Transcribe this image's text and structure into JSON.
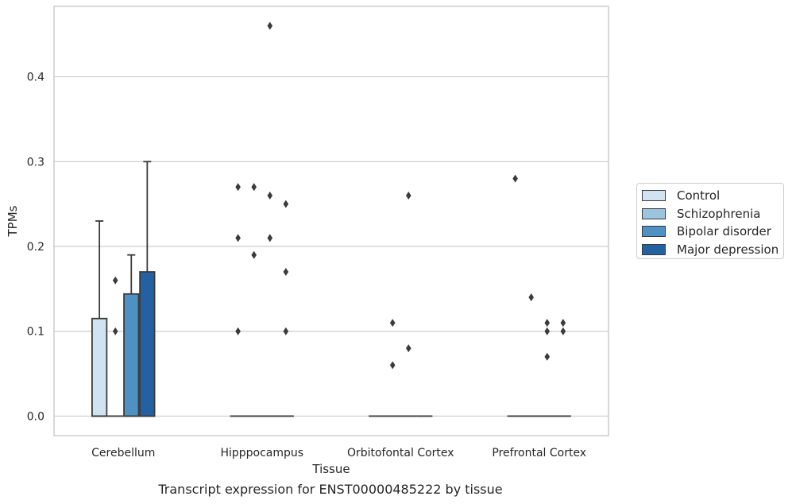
{
  "caption": "Transcript expression for ENST00000485222 by tissue",
  "chart_data": {
    "type": "box",
    "xlabel": "Tissue",
    "ylabel": "TPMs",
    "ylim": [
      -0.023,
      0.483
    ],
    "yticks": [
      0.0,
      0.1,
      0.2,
      0.3,
      0.4
    ],
    "ytick_labels": [
      "0.0",
      "0.1",
      "0.2",
      "0.3",
      "0.4"
    ],
    "grid": "horizontal",
    "legend_placement": "right, outside",
    "categories": [
      "Cerebellum",
      "Hipppocampus",
      "Orbitofontal Cortex",
      "Prefrontal Cortex"
    ],
    "series": [
      {
        "name": "Control",
        "color": "#d1e2f1"
      },
      {
        "name": "Schizophrenia",
        "color": "#9cc4de"
      },
      {
        "name": "Bipolar disorder",
        "color": "#4f91c3"
      },
      {
        "name": "Major depression",
        "color": "#2461a2"
      }
    ],
    "boxes": [
      {
        "category": 0,
        "series": 0,
        "q1": 0.0,
        "median": 0.0,
        "q3": 0.115,
        "whisker_low": 0.0,
        "whisker_high": 0.23
      },
      {
        "category": 0,
        "series": 1,
        "q1": 0.0,
        "median": 0.0,
        "q3": 0.0,
        "whisker_low": 0.0,
        "whisker_high": 0.0
      },
      {
        "category": 0,
        "series": 2,
        "q1": 0.0,
        "median": 0.0,
        "q3": 0.144,
        "whisker_low": 0.0,
        "whisker_high": 0.19
      },
      {
        "category": 0,
        "series": 3,
        "q1": 0.0,
        "median": 0.0,
        "q3": 0.17,
        "whisker_low": 0.0,
        "whisker_high": 0.3
      },
      {
        "category": 1,
        "series": 0,
        "q1": 0.0,
        "median": 0.0,
        "q3": 0.0,
        "whisker_low": 0.0,
        "whisker_high": 0.0
      },
      {
        "category": 1,
        "series": 1,
        "q1": 0.0,
        "median": 0.0,
        "q3": 0.0,
        "whisker_low": 0.0,
        "whisker_high": 0.0
      },
      {
        "category": 1,
        "series": 2,
        "q1": 0.0,
        "median": 0.0,
        "q3": 0.0,
        "whisker_low": 0.0,
        "whisker_high": 0.0
      },
      {
        "category": 1,
        "series": 3,
        "q1": 0.0,
        "median": 0.0,
        "q3": 0.0,
        "whisker_low": 0.0,
        "whisker_high": 0.0
      },
      {
        "category": 2,
        "series": 0,
        "q1": 0.0,
        "median": 0.0,
        "q3": 0.0,
        "whisker_low": 0.0,
        "whisker_high": 0.0
      },
      {
        "category": 2,
        "series": 1,
        "q1": 0.0,
        "median": 0.0,
        "q3": 0.0,
        "whisker_low": 0.0,
        "whisker_high": 0.0
      },
      {
        "category": 2,
        "series": 2,
        "q1": 0.0,
        "median": 0.0,
        "q3": 0.0,
        "whisker_low": 0.0,
        "whisker_high": 0.0
      },
      {
        "category": 2,
        "series": 3,
        "q1": 0.0,
        "median": 0.0,
        "q3": 0.0,
        "whisker_low": 0.0,
        "whisker_high": 0.0
      },
      {
        "category": 3,
        "series": 0,
        "q1": 0.0,
        "median": 0.0,
        "q3": 0.0,
        "whisker_low": 0.0,
        "whisker_high": 0.0
      },
      {
        "category": 3,
        "series": 1,
        "q1": 0.0,
        "median": 0.0,
        "q3": 0.0,
        "whisker_low": 0.0,
        "whisker_high": 0.0
      },
      {
        "category": 3,
        "series": 2,
        "q1": 0.0,
        "median": 0.0,
        "q3": 0.0,
        "whisker_low": 0.0,
        "whisker_high": 0.0
      },
      {
        "category": 3,
        "series": 3,
        "q1": 0.0,
        "median": 0.0,
        "q3": 0.0,
        "whisker_low": 0.0,
        "whisker_high": 0.0
      }
    ],
    "outliers": [
      {
        "category": 0,
        "series": 1,
        "y": 0.16
      },
      {
        "category": 0,
        "series": 1,
        "y": 0.1
      },
      {
        "category": 1,
        "series": 0,
        "y": 0.27
      },
      {
        "category": 1,
        "series": 0,
        "y": 0.21
      },
      {
        "category": 1,
        "series": 0,
        "y": 0.1
      },
      {
        "category": 1,
        "series": 1,
        "y": 0.27
      },
      {
        "category": 1,
        "series": 1,
        "y": 0.19
      },
      {
        "category": 1,
        "series": 2,
        "y": 0.46
      },
      {
        "category": 1,
        "series": 2,
        "y": 0.26
      },
      {
        "category": 1,
        "series": 2,
        "y": 0.21
      },
      {
        "category": 1,
        "series": 3,
        "y": 0.25
      },
      {
        "category": 1,
        "series": 3,
        "y": 0.17
      },
      {
        "category": 1,
        "series": 3,
        "y": 0.1
      },
      {
        "category": 2,
        "series": 1,
        "y": 0.11
      },
      {
        "category": 2,
        "series": 1,
        "y": 0.06
      },
      {
        "category": 2,
        "series": 2,
        "y": 0.26
      },
      {
        "category": 2,
        "series": 2,
        "y": 0.08
      },
      {
        "category": 3,
        "series": 0,
        "y": 0.28
      },
      {
        "category": 3,
        "series": 1,
        "y": 0.14
      },
      {
        "category": 3,
        "series": 2,
        "y": 0.11
      },
      {
        "category": 3,
        "series": 2,
        "y": 0.1
      },
      {
        "category": 3,
        "series": 2,
        "y": 0.07
      },
      {
        "category": 3,
        "series": 3,
        "y": 0.11
      },
      {
        "category": 3,
        "series": 3,
        "y": 0.1
      }
    ]
  }
}
